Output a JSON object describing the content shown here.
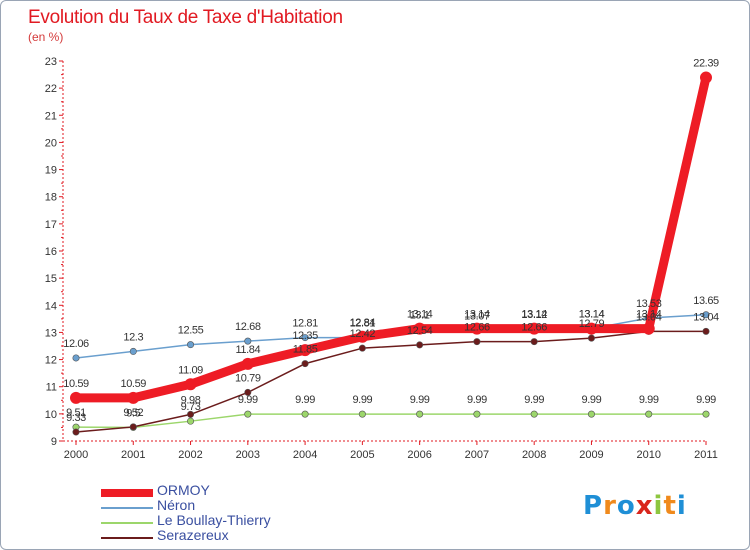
{
  "header": {
    "title": "Evolution du Taux de Taxe d'Habitation",
    "unit": "(en %)"
  },
  "logo": {
    "text": "Proxiti",
    "colors": [
      "#1f8fd6",
      "#f08a1c",
      "#1f8fd6",
      "#d9261c",
      "#8dc63f",
      "#f08a1c",
      "#1f8fd6"
    ]
  },
  "chart_data": {
    "type": "line",
    "title": "Evolution du Taux de Taxe d'Habitation",
    "ylabel": "(en %)",
    "ylim": [
      9,
      23
    ],
    "yticks": [
      "9",
      "10",
      "11",
      "12",
      "13",
      "14",
      "15",
      "16",
      "17",
      "18",
      "19",
      "20",
      "21",
      "22",
      "23"
    ],
    "x": [
      "2000",
      "2001",
      "2002",
      "2003",
      "2004",
      "2005",
      "2006",
      "2007",
      "2008",
      "2009",
      "2010",
      "2011"
    ],
    "grid": false,
    "legend_position": "bottom-left",
    "series": [
      {
        "name": "ORMOY",
        "color": "#ee1c25",
        "values": [
          10.59,
          10.59,
          11.09,
          11.84,
          12.35,
          12.84,
          13.14,
          13.14,
          13.14,
          13.14,
          13.14,
          22.39
        ],
        "labels": [
          "10.59",
          "10.59",
          "11.09",
          "11.84",
          "12.35",
          "12.84",
          "13.14",
          "13.14",
          "13.14",
          "13.14",
          "13.14",
          "22.39"
        ]
      },
      {
        "name": "Néron",
        "color": "#6a9fce",
        "values": [
          12.06,
          12.3,
          12.55,
          12.68,
          12.81,
          12.81,
          13.1,
          13.07,
          13.12,
          13.14,
          13.53,
          13.65
        ],
        "labels": [
          "12.06",
          "12.3",
          "12.55",
          "12.68",
          "12.81",
          "12.81",
          "13.1",
          "13.07",
          "13.12",
          "13.14",
          "13.53",
          "13.65"
        ]
      },
      {
        "name": "Le Boullay-Thierry",
        "color": "#9cd66b",
        "values": [
          9.51,
          9.5,
          9.73,
          9.99,
          9.99,
          9.99,
          9.99,
          9.99,
          9.99,
          9.99,
          9.99,
          9.99
        ],
        "labels": [
          "9.51",
          "9.5",
          "9.73",
          "9.99",
          "9.99",
          "9.99",
          "9.99",
          "9.99",
          "9.99",
          "9.99",
          "9.99",
          "9.99"
        ]
      },
      {
        "name": "Serazereux",
        "color": "#6b1c1c",
        "values": [
          9.33,
          9.52,
          9.98,
          10.79,
          11.85,
          12.42,
          12.54,
          12.66,
          12.66,
          12.79,
          13.04,
          13.04
        ],
        "labels": [
          "9.33",
          "9.52",
          "9.98",
          "10.79",
          "11.85",
          "12.42",
          "12.54",
          "12.66",
          "12.66",
          "12.79",
          "13.04",
          "13.04"
        ]
      }
    ]
  }
}
